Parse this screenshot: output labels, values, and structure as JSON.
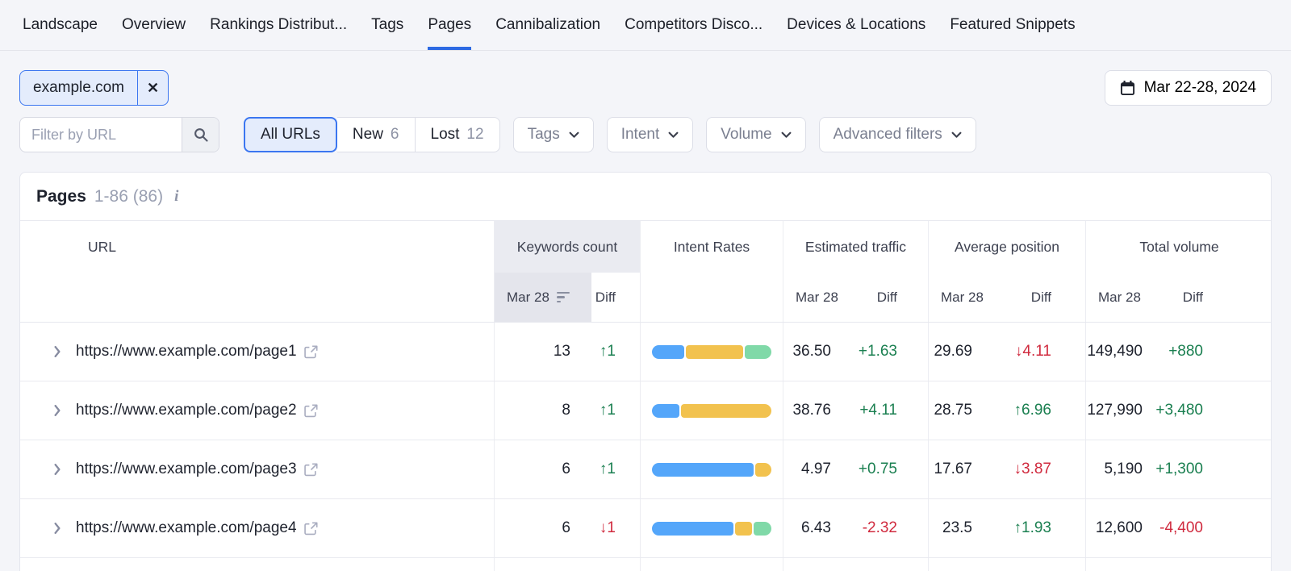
{
  "nav": {
    "tabs": [
      {
        "label": "Landscape",
        "active": false
      },
      {
        "label": "Overview",
        "active": false
      },
      {
        "label": "Rankings Distribut...",
        "active": false
      },
      {
        "label": "Tags",
        "active": false
      },
      {
        "label": "Pages",
        "active": true
      },
      {
        "label": "Cannibalization",
        "active": false
      },
      {
        "label": "Competitors Disco...",
        "active": false
      },
      {
        "label": "Devices & Locations",
        "active": false
      },
      {
        "label": "Featured Snippets",
        "active": false
      }
    ]
  },
  "toolbar": {
    "filter_chip": {
      "label": "example.com",
      "remove": "✕"
    },
    "date_range": "Mar 22-28, 2024",
    "url_filter_placeholder": "Filter by URL",
    "segments": [
      {
        "label": "All URLs",
        "count": "",
        "active": true
      },
      {
        "label": "New",
        "count": "6",
        "active": false
      },
      {
        "label": "Lost",
        "count": "12",
        "active": false
      }
    ],
    "dropdowns": [
      {
        "label": "Tags"
      },
      {
        "label": "Intent"
      },
      {
        "label": "Volume"
      },
      {
        "label": "Advanced filters"
      }
    ]
  },
  "table": {
    "title": "Pages",
    "range": "1-86 (86)",
    "info_icon": "i",
    "columns": {
      "url": "URL",
      "keywords": "Keywords count",
      "intent": "Intent Rates",
      "traffic": "Estimated traffic",
      "position": "Average position",
      "volume": "Total volume"
    },
    "sub": {
      "date": "Mar 28",
      "diff": "Diff"
    },
    "rows": [
      {
        "url": "https://www.example.com/page1",
        "kw": "13",
        "kw_diff": {
          "text": "↑1",
          "tone": "green"
        },
        "intent": [
          {
            "color": "blue",
            "pct": 28
          },
          {
            "color": "yellow",
            "pct": 49
          },
          {
            "color": "green",
            "pct": 23
          }
        ],
        "traffic": "36.50",
        "traffic_diff": {
          "text": "+1.63",
          "tone": "green"
        },
        "pos": "29.69",
        "pos_diff": {
          "text": "↓4.11",
          "tone": "red"
        },
        "vol": "149,490",
        "vol_diff": {
          "text": "+880",
          "tone": "green"
        }
      },
      {
        "url": "https://www.example.com/page2",
        "kw": "8",
        "kw_diff": {
          "text": "↑1",
          "tone": "green"
        },
        "intent": [
          {
            "color": "blue",
            "pct": 23
          },
          {
            "color": "yellow",
            "pct": 77
          }
        ],
        "traffic": "38.76",
        "traffic_diff": {
          "text": "+4.11",
          "tone": "green"
        },
        "pos": "28.75",
        "pos_diff": {
          "text": "↑6.96",
          "tone": "green"
        },
        "vol": "127,990",
        "vol_diff": {
          "text": "+3,480",
          "tone": "green"
        }
      },
      {
        "url": "https://www.example.com/page3",
        "kw": "6",
        "kw_diff": {
          "text": "↑1",
          "tone": "green"
        },
        "intent": [
          {
            "color": "blue",
            "pct": 86
          },
          {
            "color": "yellow",
            "pct": 14
          }
        ],
        "traffic": "4.97",
        "traffic_diff": {
          "text": "+0.75",
          "tone": "green"
        },
        "pos": "17.67",
        "pos_diff": {
          "text": "↓3.87",
          "tone": "red"
        },
        "vol": "5,190",
        "vol_diff": {
          "text": "+1,300",
          "tone": "green"
        }
      },
      {
        "url": "https://www.example.com/page4",
        "kw": "6",
        "kw_diff": {
          "text": "↓1",
          "tone": "red"
        },
        "intent": [
          {
            "color": "blue",
            "pct": 70
          },
          {
            "color": "yellow",
            "pct": 15
          },
          {
            "color": "green",
            "pct": 15
          }
        ],
        "traffic": "6.43",
        "traffic_diff": {
          "text": "-2.32",
          "tone": "red"
        },
        "pos": "23.5",
        "pos_diff": {
          "text": "↑1.93",
          "tone": "green"
        },
        "vol": "12,600",
        "vol_diff": {
          "text": "-4,400",
          "tone": "red"
        }
      }
    ]
  },
  "colors": {
    "accent": "#2d6ae3",
    "green": "#1a7f50",
    "red": "#d02a3e",
    "intent": {
      "blue": "#54a6fa",
      "yellow": "#f2c24e",
      "green": "#80d9a8"
    }
  }
}
